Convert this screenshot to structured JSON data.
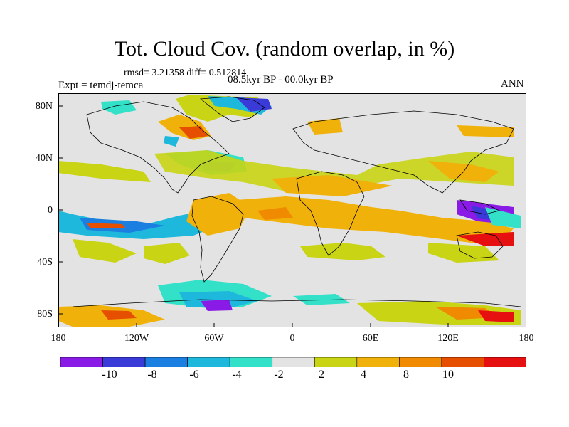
{
  "title": "Tot. Cloud Cov. (random overlap, in %)",
  "stats": "rmsd= 3.21358 diff= 0.512814",
  "experiment": "Expt = temdj-temca",
  "period": "08.5kyr BP - 00.0kyr BP",
  "season": "ANN",
  "lat_ticks": [
    "80N",
    "40N",
    "0",
    "40S",
    "80S"
  ],
  "lon_ticks": [
    "180",
    "120W",
    "60W",
    "0",
    "60E",
    "120E",
    "180"
  ],
  "colorbar": {
    "labels": [
      "-10",
      "-8",
      "-6",
      "-4",
      "-2",
      "2",
      "4",
      "8",
      "10"
    ],
    "colors": [
      "#8a1be6",
      "#3a3ad9",
      "#1a7fe0",
      "#1fb8dd",
      "#33e0c8",
      "#e3e3e3",
      "#c8d414",
      "#f0b20a",
      "#f08a00",
      "#e64e00",
      "#e61010"
    ]
  }
}
